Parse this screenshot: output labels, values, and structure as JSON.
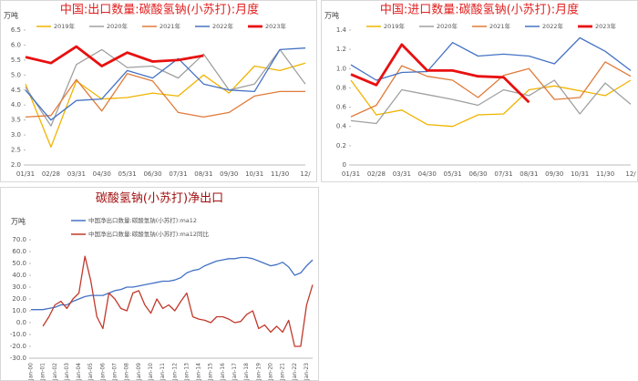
{
  "chart_data": [
    {
      "type": "line",
      "title": "中国:出口数量:碳酸氢钠(小苏打):月度",
      "title_color": "#e02020",
      "y_label": "万吨",
      "legend": "top",
      "categories": [
        "01/31",
        "02/28",
        "03/31",
        "04/30",
        "05/31",
        "06/30",
        "07/31",
        "08/31",
        "09/30",
        "10/31",
        "11/30",
        "12/"
      ],
      "ylim": [
        2.0,
        6.5
      ],
      "yticks": [
        {
          "value": 2.0,
          "label": "2.0"
        },
        2.5,
        {
          "value": 3.0,
          "label": "3.0"
        },
        3.5,
        {
          "value": 4.0,
          "label": "4.0"
        },
        4.5,
        {
          "value": 5.0,
          "label": "5.0"
        },
        5.5,
        {
          "value": 6.0,
          "label": "6.0"
        },
        6.5
      ],
      "series": [
        {
          "name": "2019年",
          "color": "#f0b400",
          "values": [
            4.7,
            2.6,
            4.8,
            4.2,
            4.25,
            4.4,
            4.3,
            5.0,
            4.4,
            5.3,
            5.15,
            5.4
          ]
        },
        {
          "name": "2020年",
          "color": "#a0a0a0",
          "values": [
            4.6,
            3.3,
            5.35,
            5.85,
            5.25,
            5.3,
            4.9,
            5.7,
            4.5,
            4.7,
            5.85,
            4.7
          ]
        },
        {
          "name": "2021年",
          "color": "#e07b39",
          "values": [
            3.6,
            3.65,
            4.85,
            3.8,
            5.05,
            4.8,
            3.75,
            3.6,
            3.75,
            4.3,
            4.45,
            4.45
          ]
        },
        {
          "name": "2022年",
          "color": "#4472c4",
          "values": [
            4.5,
            3.5,
            4.15,
            4.2,
            5.15,
            4.9,
            5.55,
            4.7,
            4.5,
            4.45,
            5.85,
            5.9
          ]
        },
        {
          "name": "2023年",
          "color": "#e81010",
          "values": [
            5.6,
            5.4,
            5.95,
            5.3,
            5.75,
            5.45,
            5.5,
            5.65,
            null,
            null,
            null,
            null
          ]
        }
      ]
    },
    {
      "type": "line",
      "title": "中国:进口数量:碳酸氢钠(小苏打):月度",
      "title_color": "#e02020",
      "y_label": "万吨",
      "legend": "top",
      "categories": [
        "01/31",
        "02/28",
        "03/31",
        "04/30",
        "05/31",
        "06/30",
        "07/31",
        "08/31",
        "09/30",
        "10/31",
        "11/30",
        "12/"
      ],
      "ylim": [
        0,
        1.4
      ],
      "yticks": [
        0,
        0.2,
        0.4,
        0.6,
        0.8,
        {
          "value": 1.0,
          "label": "1.0"
        },
        1.2,
        1.4
      ],
      "series": [
        {
          "name": "2019年",
          "color": "#f0b400",
          "values": [
            0.88,
            0.52,
            0.57,
            0.42,
            0.4,
            0.52,
            0.53,
            0.78,
            0.82,
            0.77,
            0.72,
            0.88
          ]
        },
        {
          "name": "2020年",
          "color": "#a0a0a0",
          "values": [
            0.46,
            0.43,
            0.78,
            0.73,
            0.68,
            0.62,
            0.78,
            0.72,
            0.88,
            0.53,
            0.85,
            0.63
          ]
        },
        {
          "name": "2021年",
          "color": "#e07b39",
          "values": [
            0.5,
            0.62,
            1.03,
            0.92,
            0.88,
            0.7,
            0.93,
            1.0,
            0.68,
            0.7,
            1.07,
            0.92
          ]
        },
        {
          "name": "2022年",
          "color": "#4472c4",
          "values": [
            1.04,
            0.88,
            0.96,
            0.97,
            1.27,
            1.13,
            1.15,
            1.13,
            1.05,
            1.32,
            1.18,
            0.98
          ]
        },
        {
          "name": "2023年",
          "color": "#e81010",
          "values": [
            0.94,
            0.83,
            1.25,
            0.98,
            0.98,
            0.92,
            0.91,
            0.65,
            null,
            null,
            null,
            null
          ]
        }
      ]
    },
    {
      "type": "line",
      "title": "碳酸氢钠(小苏打)净出口",
      "title_color": "#a01010",
      "y_label": "万吨",
      "legend": "column",
      "categories": [
        "Jan-00",
        null,
        "Jan-01",
        null,
        "Jan-02",
        null,
        "Jan-03",
        null,
        "Jan-04",
        null,
        "Jan-05",
        null,
        "Jan-06",
        null,
        "Jan-07",
        null,
        "Jan-08",
        null,
        "Jan-09",
        null,
        "Jan-10",
        null,
        "Jan-11",
        null,
        "Jan-12",
        null,
        "Jan-13",
        null,
        "Jan-14",
        null,
        "Jan-15",
        null,
        "Jan-16",
        null,
        "Jan-17",
        null,
        "Jan-18",
        null,
        "Jan-19",
        null,
        "Jan-20",
        null,
        "Jan-21",
        null,
        "Jan-22",
        null,
        "Jan-23",
        null
      ],
      "ylim": [
        -30,
        70
      ],
      "yticks": [
        {
          "value": -30,
          "label": "-30.0"
        },
        {
          "value": -20,
          "label": "-20.0"
        },
        {
          "value": -10,
          "label": "-10.0"
        },
        {
          "value": 0,
          "label": "0.0"
        },
        {
          "value": 10,
          "label": "10.0"
        },
        {
          "value": 20,
          "label": "20.0"
        },
        {
          "value": 30,
          "label": "30.0"
        },
        {
          "value": 40,
          "label": "40.0"
        },
        {
          "value": 50,
          "label": "50.0"
        },
        {
          "value": 60,
          "label": "60.0"
        },
        {
          "value": 70,
          "label": "70.0"
        }
      ],
      "series": [
        {
          "name": "中国净出口数量:碳酸氢钠(小苏打):ma12",
          "color": "#4472c4",
          "values": [
            11,
            11,
            11,
            12,
            13,
            15,
            15,
            18,
            20,
            22,
            23,
            23,
            23,
            25,
            27,
            28,
            30,
            30,
            31,
            32,
            33,
            34,
            35,
            35,
            36,
            38,
            42,
            44,
            45,
            48,
            50,
            52,
            53,
            54,
            54,
            55,
            55,
            54,
            52,
            50,
            48,
            49,
            51,
            47,
            40,
            42,
            48,
            53
          ]
        },
        {
          "name": "中国净出口数量:碳酸氢钠(小苏打):ma12同比",
          "color": "#c0392b",
          "values": [
            null,
            null,
            -3,
            5,
            15,
            18,
            12,
            20,
            25,
            56,
            35,
            5,
            -5,
            25,
            20,
            12,
            10,
            25,
            27,
            15,
            8,
            20,
            12,
            15,
            10,
            18,
            25,
            5,
            3,
            2,
            0,
            5,
            5,
            3,
            0,
            1,
            7,
            10,
            -5,
            -2,
            -8,
            -3,
            -8,
            2,
            -20,
            -20,
            15,
            32
          ]
        }
      ]
    }
  ]
}
